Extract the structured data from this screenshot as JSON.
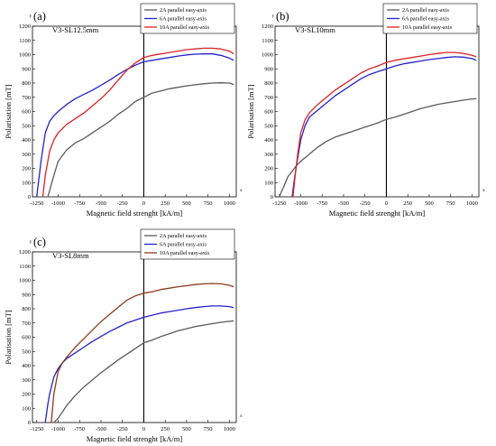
{
  "panels": [
    {
      "panel_label": "(a)",
      "sample": "V3-SL12.5mm",
      "axis_marker_y": "y",
      "axis_marker_x": "x",
      "xlabel": "Magnetic field strenght [kA/m]",
      "ylabel": "Polarisation [mT]",
      "x_ticks": [
        "-1250",
        "-1000",
        "-750",
        "-500",
        "-250",
        "0",
        "250",
        "500",
        "750",
        "1000"
      ],
      "y_ticks": [
        "0",
        "100",
        "200",
        "300",
        "400",
        "500",
        "600",
        "700",
        "800",
        "900",
        "1000",
        "1100",
        "1200"
      ]
    },
    {
      "panel_label": "(b)",
      "sample": "V3-SL10mm",
      "axis_marker_y": "y",
      "axis_marker_x": "x",
      "xlabel": "Magnetic field strenght [kA/m]",
      "ylabel": "Polarisation [mT]",
      "x_ticks": [
        "-1250",
        "-1000",
        "-750",
        "-500",
        "-250",
        "0",
        "250",
        "500",
        "750",
        "1000"
      ],
      "y_ticks": [
        "0",
        "100",
        "200",
        "300",
        "400",
        "500",
        "600",
        "700",
        "800",
        "900",
        "1000",
        "1100",
        "1200"
      ]
    },
    {
      "panel_label": "(c)",
      "sample": "V3-SL8mm",
      "axis_marker_y": "y",
      "axis_marker_x": "x",
      "xlabel": "Magnetic field strenght [kA/m]",
      "ylabel": "Polarisation [mT]",
      "x_ticks": [
        "-1250",
        "-1000",
        "-750",
        "-500",
        "-250",
        "0",
        "250",
        "500",
        "750",
        "1000"
      ],
      "y_ticks": [
        "0",
        "100",
        "200",
        "300",
        "400",
        "500",
        "600",
        "700",
        "800",
        "900",
        "1000",
        "1100",
        "1200"
      ]
    }
  ],
  "chart_data": [
    {
      "type": "line",
      "xlabel": "Magnetic field strenght [kA/m]",
      "ylabel": "Polarisation [mT]",
      "xlim": [
        -1300,
        1080
      ],
      "ylim": [
        0,
        1200
      ],
      "grid": false,
      "legend": "top-right",
      "series": [
        {
          "name": "2A parallel easy-axis",
          "color": "#5a5a5a",
          "x": [
            -1120,
            -1050,
            -1000,
            -900,
            -800,
            -700,
            -600,
            -500,
            -400,
            -300,
            -200,
            -100,
            0,
            100,
            200,
            300,
            400,
            500,
            600,
            700,
            800,
            900,
            1000,
            1050
          ],
          "y": [
            0,
            150,
            250,
            330,
            380,
            410,
            450,
            490,
            530,
            580,
            620,
            670,
            700,
            730,
            745,
            760,
            770,
            780,
            788,
            795,
            800,
            802,
            800,
            790
          ]
        },
        {
          "name": "6A parallel easy-axis",
          "color": "#2222cc",
          "x": [
            -1250,
            -1200,
            -1150,
            -1100,
            -1050,
            -1000,
            -900,
            -800,
            -700,
            -600,
            -500,
            -400,
            -300,
            -200,
            -100,
            0,
            100,
            200,
            300,
            400,
            500,
            600,
            700,
            800,
            900,
            1000,
            1050
          ],
          "y": [
            0,
            250,
            450,
            530,
            570,
            600,
            650,
            690,
            720,
            750,
            785,
            820,
            860,
            895,
            925,
            950,
            960,
            970,
            980,
            990,
            998,
            1003,
            1005,
            1005,
            995,
            975,
            960
          ]
        },
        {
          "name": "10A parallel easy-axis",
          "color": "#dd2222",
          "x": [
            -1180,
            -1150,
            -1100,
            -1050,
            -1000,
            -900,
            -800,
            -700,
            -600,
            -500,
            -400,
            -300,
            -200,
            -100,
            0,
            100,
            200,
            300,
            400,
            500,
            600,
            700,
            800,
            900,
            1000,
            1050
          ],
          "y": [
            0,
            150,
            320,
            400,
            450,
            510,
            550,
            590,
            640,
            690,
            750,
            820,
            890,
            940,
            980,
            995,
            1005,
            1015,
            1025,
            1035,
            1040,
            1045,
            1045,
            1040,
            1025,
            1005
          ]
        }
      ]
    },
    {
      "type": "line",
      "xlabel": "Magnetic field strenght [kA/m]",
      "ylabel": "Polarisation [mT]",
      "xlim": [
        -1300,
        1080
      ],
      "ylim": [
        0,
        1200
      ],
      "grid": false,
      "legend": "top-right",
      "series": [
        {
          "name": "2A parallel easy-axis",
          "color": "#5a5a5a",
          "x": [
            -1250,
            -1200,
            -1150,
            -1100,
            -1050,
            -1000,
            -900,
            -800,
            -700,
            -600,
            -500,
            -400,
            -300,
            -200,
            -100,
            0,
            100,
            200,
            300,
            400,
            500,
            600,
            700,
            800,
            900,
            1000,
            1050
          ],
          "y": [
            0,
            70,
            140,
            180,
            220,
            250,
            300,
            350,
            390,
            420,
            440,
            460,
            480,
            500,
            520,
            545,
            560,
            580,
            600,
            620,
            635,
            650,
            660,
            670,
            680,
            688,
            690
          ]
        },
        {
          "name": "6A parallel easy-axis",
          "color": "#2222cc",
          "x": [
            -1100,
            -1080,
            -1050,
            -1000,
            -950,
            -900,
            -800,
            -700,
            -600,
            -500,
            -400,
            -300,
            -200,
            -100,
            0,
            100,
            200,
            300,
            400,
            500,
            600,
            700,
            800,
            900,
            1000,
            1050
          ],
          "y": [
            0,
            100,
            220,
            400,
            500,
            560,
            610,
            660,
            710,
            750,
            790,
            830,
            860,
            880,
            900,
            920,
            935,
            945,
            955,
            965,
            972,
            980,
            985,
            982,
            972,
            960
          ]
        },
        {
          "name": "10A parallel easy-axis",
          "color": "#dd2222",
          "x": [
            -1090,
            -1070,
            -1040,
            -1000,
            -950,
            -900,
            -800,
            -700,
            -600,
            -500,
            -400,
            -300,
            -200,
            -100,
            0,
            100,
            200,
            300,
            400,
            500,
            600,
            700,
            800,
            900,
            1000,
            1050
          ],
          "y": [
            0,
            120,
            280,
            450,
            540,
            590,
            650,
            700,
            750,
            790,
            830,
            870,
            900,
            920,
            945,
            960,
            970,
            980,
            990,
            1000,
            1008,
            1015,
            1015,
            1008,
            995,
            985
          ]
        }
      ]
    },
    {
      "type": "line",
      "xlabel": "Magnetic field strenght [kA/m]",
      "ylabel": "Polarisation [mT]",
      "xlim": [
        -1300,
        1080
      ],
      "ylim": [
        0,
        1200
      ],
      "grid": false,
      "legend": "top-right",
      "series": [
        {
          "name": "2A parallel easy-axis",
          "color": "#5a5a5a",
          "x": [
            -1050,
            -1000,
            -900,
            -800,
            -700,
            -600,
            -500,
            -400,
            -300,
            -200,
            -100,
            0,
            100,
            200,
            300,
            400,
            500,
            600,
            700,
            800,
            900,
            1000,
            1050
          ],
          "y": [
            0,
            30,
            120,
            190,
            250,
            300,
            350,
            395,
            440,
            480,
            520,
            560,
            580,
            605,
            625,
            645,
            660,
            675,
            685,
            695,
            705,
            712,
            715
          ]
        },
        {
          "name": "6A parallel easy-axis",
          "color": "#2222cc",
          "x": [
            -1150,
            -1120,
            -1100,
            -1050,
            -1000,
            -950,
            -900,
            -800,
            -700,
            -600,
            -500,
            -400,
            -300,
            -200,
            -100,
            0,
            100,
            200,
            300,
            400,
            500,
            600,
            700,
            800,
            900,
            1000,
            1050
          ],
          "y": [
            0,
            130,
            200,
            320,
            380,
            420,
            450,
            490,
            530,
            570,
            605,
            640,
            670,
            700,
            720,
            740,
            755,
            770,
            780,
            790,
            800,
            808,
            815,
            820,
            820,
            815,
            808
          ]
        },
        {
          "name": "10A parallel easy-axis",
          "color": "#8b3a1a",
          "x": [
            -1080,
            -1050,
            -1000,
            -950,
            -900,
            -800,
            -700,
            -600,
            -500,
            -400,
            -300,
            -200,
            -100,
            0,
            100,
            200,
            300,
            400,
            500,
            600,
            700,
            800,
            900,
            1000,
            1050
          ],
          "y": [
            0,
            200,
            360,
            420,
            460,
            530,
            590,
            650,
            710,
            760,
            810,
            860,
            890,
            910,
            920,
            935,
            945,
            955,
            962,
            970,
            975,
            978,
            975,
            965,
            955
          ]
        }
      ]
    }
  ]
}
